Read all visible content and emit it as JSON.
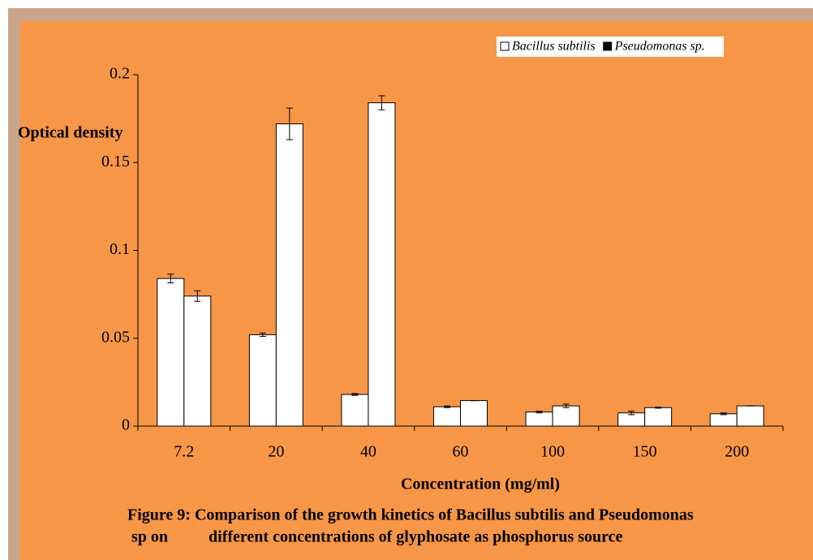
{
  "chart_data": {
    "type": "bar",
    "y_label": "Optical density",
    "x_label": "Concentration (mg/ml)",
    "caption": [
      "Figure 9: Comparison of the growth kinetics of Bacillus subtilis and Pseudomonas",
      "sp on          different concentrations of glyphosate as phosphorus source"
    ],
    "categories": [
      "7.2",
      "20",
      "40",
      "60",
      "100",
      "150",
      "200"
    ],
    "series": [
      {
        "name": "Bacillus subtilis",
        "color": "#ffffff",
        "legend_color": "#ffffff",
        "values": [
          0.084,
          0.052,
          0.018,
          0.011,
          0.008,
          0.0075,
          0.007
        ],
        "errors": [
          0.0025,
          0.001,
          0.0005,
          0.0005,
          0.0005,
          0.001,
          0.0005
        ]
      },
      {
        "name": "Pseudomonas sp.",
        "color": "#ffffff",
        "legend_color": "#000000",
        "values": [
          0.074,
          0.172,
          0.184,
          0.0145,
          0.0115,
          0.0105,
          0.0115
        ],
        "errors": [
          0.003,
          0.009,
          0.004,
          0,
          0.001,
          0.0003,
          0
        ]
      }
    ],
    "ylim": [
      0,
      0.2
    ],
    "yticks": [
      0,
      0.05,
      0.1,
      0.15,
      0.2
    ],
    "background": "#f79646",
    "grid": false
  }
}
